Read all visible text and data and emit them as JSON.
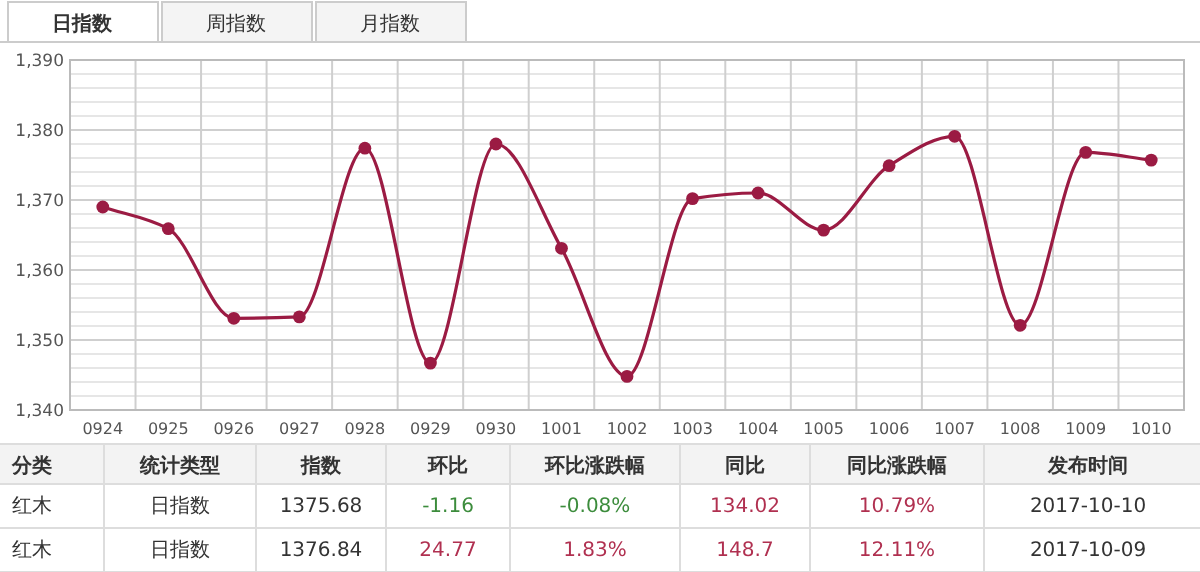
{
  "chart_data": {
    "type": "line",
    "categories": [
      "0924",
      "0925",
      "0926",
      "0927",
      "0928",
      "0929",
      "0930",
      "1001",
      "1002",
      "1003",
      "1004",
      "1005",
      "1006",
      "1007",
      "1008",
      "1009",
      "1010"
    ],
    "series": [
      {
        "color": "#9b1b43",
        "values": [
          1369.0,
          1365.9,
          1353.1,
          1353.3,
          1377.4,
          1346.7,
          1378.0,
          1363.1,
          1344.8,
          1370.2,
          1371.0,
          1365.7,
          1374.9,
          1379.1,
          1352.1,
          1376.8,
          1375.7
        ]
      }
    ],
    "ylim": [
      1340,
      1390
    ],
    "yticks": [
      {
        "value": 1340,
        "label": "1,340"
      },
      {
        "value": 1342,
        "label": null
      },
      {
        "value": 1344,
        "label": null
      },
      {
        "value": 1346,
        "label": null
      },
      {
        "value": 1348,
        "label": null
      },
      {
        "value": 1350,
        "label": "1,350"
      },
      {
        "value": 1352,
        "label": null
      },
      {
        "value": 1354,
        "label": null
      },
      {
        "value": 1356,
        "label": null
      },
      {
        "value": 1358,
        "label": null
      },
      {
        "value": 1360,
        "label": "1,360"
      },
      {
        "value": 1362,
        "label": null
      },
      {
        "value": 1364,
        "label": null
      },
      {
        "value": 1366,
        "label": null
      },
      {
        "value": 1368,
        "label": null
      },
      {
        "value": 1370,
        "label": "1,370"
      },
      {
        "value": 1372,
        "label": null
      },
      {
        "value": 1374,
        "label": null
      },
      {
        "value": 1376,
        "label": null
      },
      {
        "value": 1378,
        "label": null
      },
      {
        "value": 1380,
        "label": "1,380"
      },
      {
        "value": 1382,
        "label": null
      },
      {
        "value": 1384,
        "label": null
      },
      {
        "value": 1386,
        "label": null
      },
      {
        "value": 1388,
        "label": null
      },
      {
        "value": 1390,
        "label": "1,390"
      }
    ],
    "grid": true,
    "marker": "circle",
    "line_style": "solid",
    "annotations": [
      "日指数",
      "周指数",
      "月指数",
      "分类",
      "统计类型",
      "指数",
      "环比",
      "环比涨跌幅",
      "同比",
      "同比涨跌幅",
      "发布时间",
      "红木",
      "日指数",
      "1375.68",
      "-1.16",
      "-0.08%",
      "134.02",
      "10.79%",
      "2017-10-10",
      "红木",
      "日指数",
      "1376.84",
      "24.77",
      "1.83%",
      "148.7",
      "12.11%",
      "2017-10-09"
    ]
  }
}
